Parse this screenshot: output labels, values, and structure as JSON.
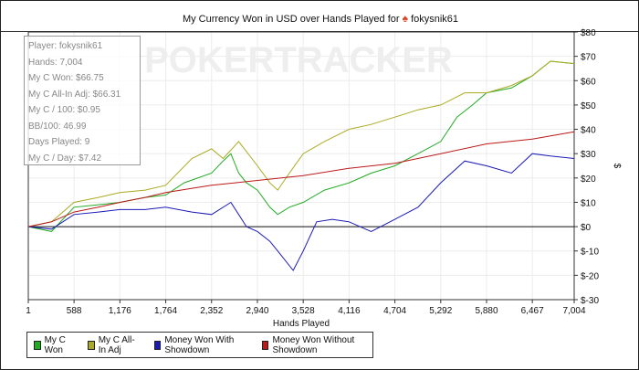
{
  "chart_data": {
    "type": "line",
    "title": "My Currency Won in USD over Hands Played for",
    "player": "fokysnik61",
    "xlabel": "Hands Played",
    "ylabel": "$",
    "xlim": [
      1,
      7004
    ],
    "ylim": [
      -30,
      80
    ],
    "x_ticks": [
      "1",
      "588",
      "1,176",
      "1,764",
      "2,352",
      "2,940",
      "3,528",
      "4,116",
      "4,704",
      "5,292",
      "5,880",
      "6,467",
      "7,004"
    ],
    "x_tick_values": [
      1,
      588,
      1176,
      1764,
      2352,
      2940,
      3528,
      4116,
      4704,
      5292,
      5880,
      6467,
      7004
    ],
    "y_ticks": [
      "$80",
      "$70",
      "$60",
      "$50",
      "$40",
      "$30",
      "$20",
      "$10",
      "$0",
      "$-10",
      "$-20",
      "$-30"
    ],
    "y_tick_values": [
      80,
      70,
      60,
      50,
      40,
      30,
      20,
      10,
      0,
      -10,
      -20,
      -30
    ],
    "grid": true,
    "legend_position": "bottom-left",
    "series": [
      {
        "name": "My C Won",
        "color": "#22aa22",
        "points": [
          [
            1,
            0
          ],
          [
            300,
            -2
          ],
          [
            588,
            8
          ],
          [
            900,
            9
          ],
          [
            1176,
            10
          ],
          [
            1500,
            12
          ],
          [
            1764,
            13
          ],
          [
            2000,
            18
          ],
          [
            2352,
            22
          ],
          [
            2500,
            27
          ],
          [
            2600,
            30
          ],
          [
            2700,
            22
          ],
          [
            2800,
            18
          ],
          [
            2940,
            15
          ],
          [
            3100,
            8
          ],
          [
            3200,
            5
          ],
          [
            3350,
            8
          ],
          [
            3528,
            10
          ],
          [
            3800,
            15
          ],
          [
            4116,
            18
          ],
          [
            4400,
            22
          ],
          [
            4704,
            25
          ],
          [
            5000,
            30
          ],
          [
            5292,
            35
          ],
          [
            5500,
            45
          ],
          [
            5700,
            50
          ],
          [
            5880,
            55
          ],
          [
            6200,
            57
          ],
          [
            6467,
            62
          ],
          [
            6700,
            68
          ],
          [
            7004,
            67
          ]
        ]
      },
      {
        "name": "My C All-In Adj",
        "color": "#aaaa22",
        "points": [
          [
            1,
            0
          ],
          [
            300,
            2
          ],
          [
            588,
            10
          ],
          [
            900,
            12
          ],
          [
            1176,
            14
          ],
          [
            1500,
            15
          ],
          [
            1764,
            17
          ],
          [
            2100,
            28
          ],
          [
            2352,
            32
          ],
          [
            2500,
            28
          ],
          [
            2700,
            35
          ],
          [
            2940,
            25
          ],
          [
            3100,
            18
          ],
          [
            3200,
            15
          ],
          [
            3350,
            22
          ],
          [
            3528,
            30
          ],
          [
            3800,
            35
          ],
          [
            4116,
            40
          ],
          [
            4400,
            42
          ],
          [
            4704,
            45
          ],
          [
            5000,
            48
          ],
          [
            5292,
            50
          ],
          [
            5600,
            55
          ],
          [
            5880,
            55
          ],
          [
            6200,
            58
          ],
          [
            6467,
            62
          ],
          [
            6700,
            68
          ],
          [
            7004,
            67
          ]
        ]
      },
      {
        "name": "Money Won With Showdown",
        "color": "#1a1ab4",
        "points": [
          [
            1,
            0
          ],
          [
            300,
            -1
          ],
          [
            588,
            5
          ],
          [
            900,
            6
          ],
          [
            1176,
            7
          ],
          [
            1500,
            7
          ],
          [
            1764,
            8
          ],
          [
            2100,
            6
          ],
          [
            2352,
            5
          ],
          [
            2600,
            10
          ],
          [
            2800,
            0
          ],
          [
            2940,
            -2
          ],
          [
            3100,
            -6
          ],
          [
            3200,
            -10
          ],
          [
            3400,
            -18
          ],
          [
            3528,
            -10
          ],
          [
            3700,
            2
          ],
          [
            3900,
            3
          ],
          [
            4116,
            2
          ],
          [
            4400,
            -2
          ],
          [
            4704,
            3
          ],
          [
            5000,
            8
          ],
          [
            5292,
            18
          ],
          [
            5600,
            27
          ],
          [
            5880,
            25
          ],
          [
            6200,
            22
          ],
          [
            6467,
            30
          ],
          [
            6700,
            29
          ],
          [
            7004,
            28
          ]
        ]
      },
      {
        "name": "Money Won Without Showdown",
        "color": "#bb1a1a",
        "points": [
          [
            1,
            0
          ],
          [
            300,
            2
          ],
          [
            588,
            6
          ],
          [
            900,
            8
          ],
          [
            1176,
            10
          ],
          [
            1500,
            12
          ],
          [
            1764,
            14
          ],
          [
            2352,
            17
          ],
          [
            2940,
            19
          ],
          [
            3528,
            21
          ],
          [
            4116,
            24
          ],
          [
            4704,
            26
          ],
          [
            5292,
            30
          ],
          [
            5880,
            34
          ],
          [
            6467,
            36
          ],
          [
            7004,
            39
          ]
        ]
      }
    ]
  },
  "stats": [
    "Player: fokysnik61",
    "Hands: 7,004",
    "My C Won: $66.75",
    "My C All-In Adj: $66.31",
    "My C / 100: $0.95",
    "BB/100: 46.99",
    "Days Played: 9",
    "My C / Day: $7.42"
  ],
  "watermark": "POKERTRACKER"
}
